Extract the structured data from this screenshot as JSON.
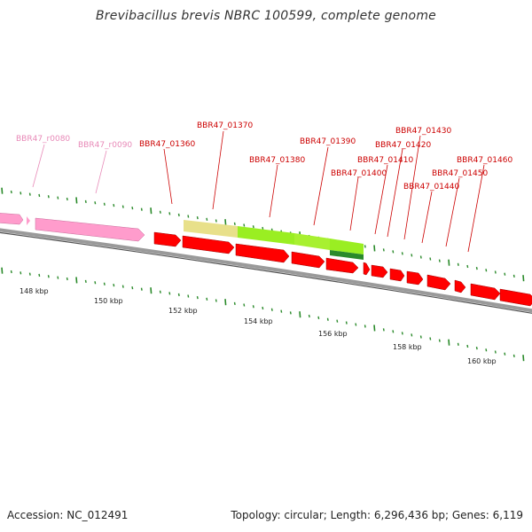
{
  "title": "Brevibacillus brevis NBRC 100599, complete genome",
  "footer": {
    "accession": "Accession: NC_012491",
    "summary": "Topology: circular; Length: 6,296,436 bp; Genes: 6,119"
  },
  "colors": {
    "rna_label": "#e88ab8",
    "rna_fill": "#ff9ccc",
    "cds_label": "#cc0000",
    "cds_fill": "#ff0000",
    "tick": "#2a8a2a",
    "backbone": "#808080"
  },
  "ruler_ticks": [
    {
      "label": "148 kbp"
    },
    {
      "label": "150 kbp"
    },
    {
      "label": "152 kbp"
    },
    {
      "label": "154 kbp"
    },
    {
      "label": "156 kbp"
    },
    {
      "label": "158 kbp"
    },
    {
      "label": "160 kbp"
    }
  ],
  "gene_labels": [
    {
      "text": "BBR47_r0080",
      "kind": "rna"
    },
    {
      "text": "BBR47_r0090",
      "kind": "rna"
    },
    {
      "text": "BBR47_01360",
      "kind": "cds"
    },
    {
      "text": "BBR47_01370",
      "kind": "cds"
    },
    {
      "text": "BBR47_01380",
      "kind": "cds"
    },
    {
      "text": "BBR47_01390",
      "kind": "cds"
    },
    {
      "text": "BBR47_01400",
      "kind": "cds"
    },
    {
      "text": "BBR47_01410",
      "kind": "cds"
    },
    {
      "text": "BBR47_01420",
      "kind": "cds"
    },
    {
      "text": "BBR47_01430",
      "kind": "cds"
    },
    {
      "text": "BBR47_01440",
      "kind": "cds"
    },
    {
      "text": "BBR47_01450",
      "kind": "cds"
    },
    {
      "text": "BBR47_01460",
      "kind": "cds"
    }
  ]
}
